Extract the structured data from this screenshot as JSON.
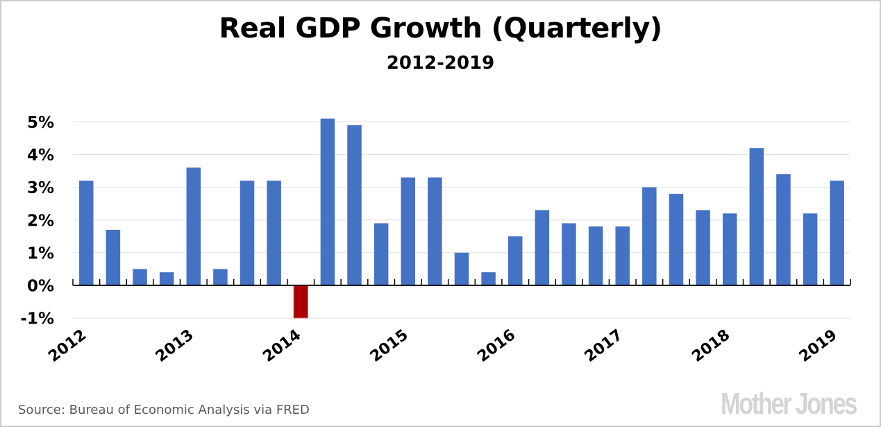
{
  "header": {
    "title": "Real GDP Growth (Quarterly)",
    "subtitle": "2012-2019"
  },
  "footer": {
    "source": "Source: Bureau of Economic Analysis via FRED",
    "logo": "Mother Jones"
  },
  "colors": {
    "positive": "#4472c4",
    "negative": "#aa0000",
    "negative_outline": "#d98080",
    "gridline": "#e3e3e3",
    "axis": "#000000"
  },
  "chart_data": {
    "type": "bar",
    "title": "Real GDP Growth (Quarterly)",
    "subtitle": "2012-2019",
    "xlabel": "",
    "ylabel": "",
    "ylim": [
      -1,
      5
    ],
    "yticks": [
      5,
      4,
      3,
      2,
      1,
      0,
      -1
    ],
    "ytick_labels": [
      "5%",
      "4%",
      "3%",
      "2%",
      "1%",
      "0%",
      "-1%"
    ],
    "grid": true,
    "legend": "none",
    "categories": [
      "2012 Q1",
      "2012 Q2",
      "2012 Q3",
      "2012 Q4",
      "2013 Q1",
      "2013 Q2",
      "2013 Q3",
      "2013 Q4",
      "2014 Q1",
      "2014 Q2",
      "2014 Q3",
      "2014 Q4",
      "2015 Q1",
      "2015 Q2",
      "2015 Q3",
      "2015 Q4",
      "2016 Q1",
      "2016 Q2",
      "2016 Q3",
      "2016 Q4",
      "2017 Q1",
      "2017 Q2",
      "2017 Q3",
      "2017 Q4",
      "2018 Q1",
      "2018 Q2",
      "2018 Q3",
      "2018 Q4",
      "2019 Q1"
    ],
    "values": [
      3.2,
      1.7,
      0.5,
      0.4,
      3.6,
      0.5,
      3.2,
      3.2,
      -1.0,
      5.1,
      4.9,
      1.9,
      3.3,
      3.3,
      1.0,
      0.4,
      1.5,
      2.3,
      1.9,
      1.8,
      1.8,
      3.0,
      2.8,
      2.3,
      2.2,
      4.2,
      3.4,
      2.2,
      3.2
    ],
    "xtick_labels": [
      {
        "label": "2012",
        "index": 0
      },
      {
        "label": "2013",
        "index": 4
      },
      {
        "label": "2014",
        "index": 8
      },
      {
        "label": "2015",
        "index": 12
      },
      {
        "label": "2016",
        "index": 16
      },
      {
        "label": "2017",
        "index": 20
      },
      {
        "label": "2018",
        "index": 24
      },
      {
        "label": "2019",
        "index": 28
      }
    ]
  }
}
